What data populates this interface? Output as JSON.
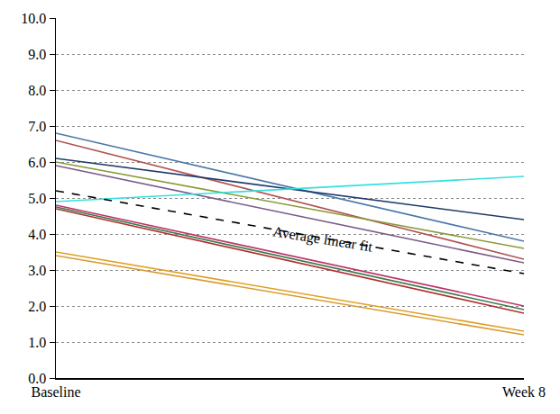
{
  "chart_data": {
    "type": "line",
    "categories": [
      "Baseline",
      "Week 8"
    ],
    "series": [
      {
        "color": "#4a78a8",
        "values": [
          6.8,
          3.8
        ]
      },
      {
        "color": "#b05050",
        "values": [
          6.6,
          3.3
        ]
      },
      {
        "color": "#1f3b6b",
        "values": [
          6.1,
          4.4
        ]
      },
      {
        "color": "#8a9a3a",
        "values": [
          6.0,
          3.6
        ]
      },
      {
        "color": "#7a5a8a",
        "values": [
          5.9,
          3.2
        ]
      },
      {
        "color": "#33e0e0",
        "values": [
          4.9,
          5.6
        ]
      },
      {
        "color": "#000000",
        "values": [
          5.2,
          2.9
        ],
        "line_style": "dashed"
      },
      {
        "color": "#c0306a",
        "values": [
          4.8,
          2.0
        ]
      },
      {
        "color": "#3a7a4a",
        "values": [
          4.75,
          1.9
        ]
      },
      {
        "color": "#b03030",
        "values": [
          4.7,
          1.8
        ]
      },
      {
        "color": "#e0a020",
        "values": [
          3.5,
          1.3
        ]
      },
      {
        "color": "#d89a30",
        "values": [
          3.4,
          1.2
        ]
      }
    ],
    "annotations": [
      {
        "text": "Average linear fit"
      }
    ],
    "ylim": [
      0,
      10
    ],
    "yticks": [
      {
        "value": 0,
        "label": "0.0"
      },
      {
        "value": 1,
        "label": "1.0"
      },
      {
        "value": 2,
        "label": "2.0"
      },
      {
        "value": 3,
        "label": "3.0"
      },
      {
        "value": 4,
        "label": "4.0"
      },
      {
        "value": 5,
        "label": "5.0"
      },
      {
        "value": 6,
        "label": "6.0"
      },
      {
        "value": 7,
        "label": "7.0"
      },
      {
        "value": 8,
        "label": "8.0"
      },
      {
        "value": 9,
        "label": "9.0"
      },
      {
        "value": 10,
        "label": "10.0"
      }
    ],
    "grid": true
  }
}
